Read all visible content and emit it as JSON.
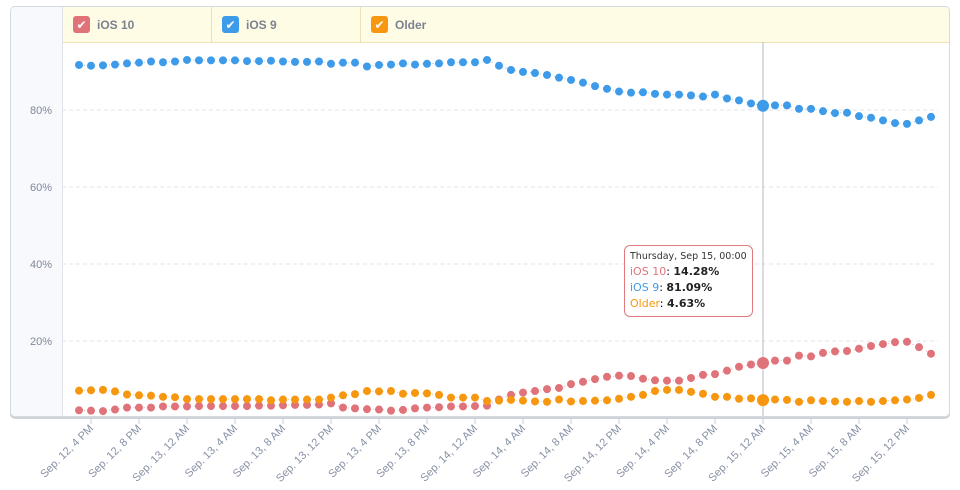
{
  "legend": [
    {
      "label": "iOS 10",
      "color": "#e0737a",
      "checked": true,
      "icon": "checkmark-icon"
    },
    {
      "label": "iOS 9",
      "color": "#3d9be9",
      "checked": true,
      "icon": "checkmark-icon"
    },
    {
      "label": "Older",
      "color": "#f7970f",
      "checked": true,
      "icon": "checkmark-icon"
    }
  ],
  "tooltip": {
    "title": "Thursday, Sep 15, 00:00",
    "rows": [
      {
        "name": "iOS 10",
        "value": "14.28%"
      },
      {
        "name": "iOS 9",
        "value": "81.09%"
      },
      {
        "name": "Older",
        "value": "4.63%"
      }
    ]
  },
  "chart_data": {
    "type": "scatter",
    "title": "",
    "xlabel": "",
    "ylabel": "",
    "x_start": "Sep. 12, 3 PM",
    "x_step": "1 hour",
    "ylim": [
      0,
      97
    ],
    "y_ticks": [
      20,
      40,
      60,
      80
    ],
    "y_tick_labels": [
      "20%",
      "40%",
      "60%",
      "80%"
    ],
    "grid": true,
    "legend_position": "top",
    "x_tick_indices": [
      1,
      5,
      9,
      13,
      17,
      21,
      25,
      29,
      33,
      37,
      41,
      45,
      49,
      53,
      57,
      61,
      65,
      69
    ],
    "x_tick_labels": [
      "Sep. 12, 4 PM",
      "Sep. 12, 8 PM",
      "Sep. 13, 12 AM",
      "Sep. 13, 4 AM",
      "Sep. 13, 8 AM",
      "Sep. 13, 12 PM",
      "Sep. 13, 4 PM",
      "Sep. 13, 8 PM",
      "Sep. 14, 12 AM",
      "Sep. 14, 4 AM",
      "Sep. 14, 8 AM",
      "Sep. 14, 12 PM",
      "Sep. 14, 4 PM",
      "Sep. 14, 8 PM",
      "Sep. 15, 12 AM",
      "Sep. 15, 4 AM",
      "Sep. 15, 8 AM",
      "Sep. 15, 12 PM"
    ],
    "highlight_index": 57,
    "series": [
      {
        "name": "iOS 10",
        "color": "#e0737a",
        "values": [
          2.0,
          1.9,
          1.8,
          2.2,
          2.7,
          2.7,
          2.7,
          3.0,
          3.0,
          3.0,
          3.1,
          3.1,
          3.1,
          3.1,
          3.1,
          3.2,
          3.2,
          3.3,
          3.4,
          3.4,
          3.5,
          3.8,
          2.7,
          2.5,
          2.3,
          2.2,
          1.9,
          2.1,
          2.5,
          2.7,
          2.8,
          3.0,
          3.0,
          3.1,
          3.2,
          4.8,
          6.0,
          6.6,
          7.0,
          7.5,
          7.8,
          8.8,
          9.4,
          10.1,
          10.7,
          11.0,
          10.9,
          10.2,
          9.8,
          9.7,
          9.7,
          10.4,
          11.2,
          11.4,
          12.3,
          13.3,
          13.9,
          14.28,
          14.9,
          14.9,
          16.2,
          16.0,
          16.9,
          17.3,
          17.4,
          18.0,
          18.7,
          19.2,
          19.7,
          19.8,
          18.4,
          16.7
        ]
      },
      {
        "name": "iOS 9",
        "color": "#3d9be9",
        "values": [
          91.7,
          91.5,
          91.6,
          91.8,
          92.1,
          92.3,
          92.6,
          92.4,
          92.6,
          93.0,
          92.9,
          92.9,
          92.9,
          92.9,
          92.7,
          92.7,
          92.8,
          92.6,
          92.5,
          92.5,
          92.6,
          92.0,
          92.3,
          92.3,
          91.3,
          91.7,
          91.8,
          92.1,
          91.8,
          92.0,
          92.1,
          92.4,
          92.4,
          92.4,
          93.0,
          91.5,
          90.4,
          89.9,
          89.6,
          89.1,
          88.4,
          87.8,
          87.1,
          86.2,
          85.5,
          84.8,
          84.5,
          84.6,
          84.2,
          84.0,
          84.0,
          83.8,
          83.5,
          84.0,
          83.0,
          82.5,
          81.7,
          81.09,
          81.2,
          81.2,
          80.3,
          80.3,
          79.7,
          79.2,
          79.3,
          78.4,
          78.0,
          77.3,
          76.6,
          76.4,
          77.3,
          78.2
        ]
      },
      {
        "name": "Older",
        "color": "#f7970f",
        "values": [
          7.1,
          7.2,
          7.3,
          6.9,
          6.1,
          5.9,
          5.8,
          5.5,
          5.4,
          4.9,
          4.9,
          4.9,
          4.9,
          4.9,
          4.9,
          4.9,
          4.6,
          4.8,
          4.8,
          4.8,
          4.8,
          5.3,
          5.9,
          6.2,
          7.0,
          6.9,
          7.0,
          6.3,
          6.5,
          6.4,
          6.0,
          5.3,
          5.3,
          5.3,
          4.4,
          4.5,
          4.7,
          4.5,
          4.3,
          4.2,
          4.8,
          4.3,
          4.4,
          4.5,
          4.6,
          5.0,
          5.5,
          6.0,
          7.0,
          7.3,
          7.3,
          6.8,
          6.3,
          5.5,
          5.5,
          5.0,
          5.1,
          4.63,
          4.8,
          4.7,
          4.2,
          4.6,
          4.4,
          4.3,
          4.2,
          4.4,
          4.2,
          4.4,
          4.6,
          4.8,
          5.2,
          6.0
        ]
      }
    ]
  }
}
